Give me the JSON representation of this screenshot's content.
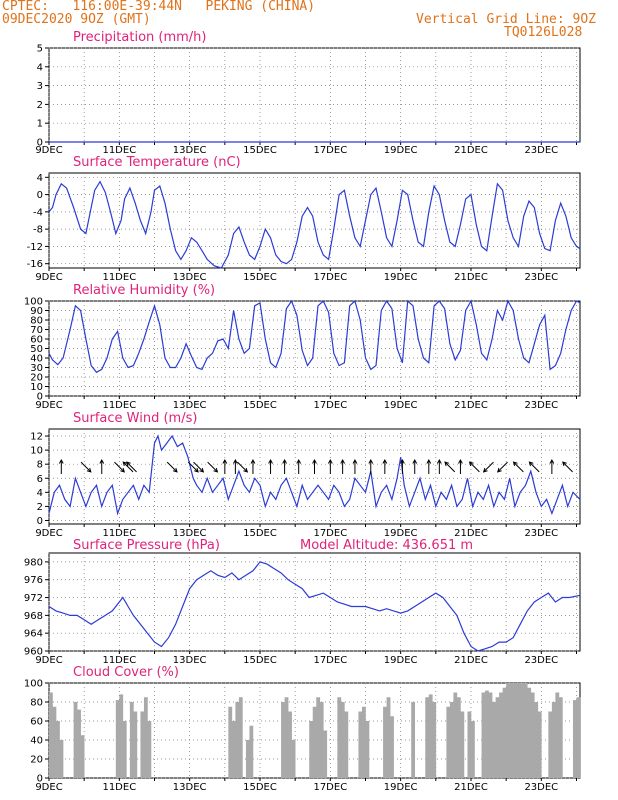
{
  "header": {
    "line1": "CPTEC:   116:00E-39:44N   PEKING (CHINA)",
    "line2": "09DEC2020 9OZ (GMT)",
    "right1": "Vertical Grid Line: 9OZ",
    "right2": "TQ0126L028"
  },
  "x_ticks": [
    "9DEC",
    "11DEC",
    "13DEC",
    "15DEC",
    "17DEC",
    "19DEC",
    "21DEC",
    "23DEC"
  ],
  "x_tick_days": [
    9,
    11,
    13,
    15,
    17,
    19,
    21,
    23
  ],
  "x_range_days": [
    9,
    24.1
  ],
  "colors": {
    "line": "#2b3bd6",
    "title": "#e0227a",
    "bar": "#a9a9a9",
    "header": "#e0731a",
    "grid": "#777777"
  },
  "chart_data": [
    {
      "type": "line",
      "title": "Precipitation (mm/h)",
      "ylim": [
        0,
        5
      ],
      "yticks": [
        0,
        1,
        2,
        3,
        4,
        5
      ],
      "x": [
        9,
        24.1
      ],
      "y": [
        0,
        0
      ]
    },
    {
      "type": "line",
      "title": "Surface Temperature (nC)",
      "ylim": [
        -17,
        5
      ],
      "yticks": [
        -16,
        -12,
        -8,
        -4,
        0,
        4
      ],
      "x": [
        9.0,
        9.1,
        9.2,
        9.35,
        9.5,
        9.7,
        9.9,
        10.05,
        10.15,
        10.3,
        10.45,
        10.6,
        10.75,
        10.9,
        11.05,
        11.15,
        11.3,
        11.45,
        11.6,
        11.75,
        11.9,
        12.0,
        12.15,
        12.3,
        12.45,
        12.6,
        12.75,
        12.9,
        13.05,
        13.2,
        13.35,
        13.5,
        13.7,
        13.9,
        14.1,
        14.25,
        14.4,
        14.55,
        14.7,
        14.85,
        15.0,
        15.15,
        15.3,
        15.45,
        15.6,
        15.75,
        15.9,
        16.05,
        16.2,
        16.35,
        16.5,
        16.65,
        16.8,
        16.95,
        17.1,
        17.25,
        17.4,
        17.55,
        17.7,
        17.85,
        18.0,
        18.15,
        18.3,
        18.45,
        18.6,
        18.75,
        18.9,
        19.05,
        19.2,
        19.35,
        19.5,
        19.65,
        19.8,
        19.95,
        20.1,
        20.25,
        20.4,
        20.55,
        20.7,
        20.85,
        21.0,
        21.15,
        21.3,
        21.45,
        21.6,
        21.75,
        21.9,
        22.05,
        22.2,
        22.35,
        22.5,
        22.65,
        22.8,
        22.95,
        23.1,
        23.25,
        23.4,
        23.55,
        23.7,
        23.85,
        24.0,
        24.1
      ],
      "y": [
        -4,
        -3,
        0,
        2.5,
        1.5,
        -3,
        -8,
        -9,
        -5,
        1,
        3,
        0.5,
        -4,
        -9,
        -6,
        -1,
        1.5,
        -2,
        -6,
        -9,
        -4,
        1,
        2,
        -2,
        -8,
        -13,
        -15,
        -13,
        -10,
        -11,
        -13,
        -15,
        -16.5,
        -17,
        -14,
        -9,
        -7.5,
        -11,
        -14,
        -15,
        -12,
        -8,
        -10,
        -14,
        -15.5,
        -16,
        -15,
        -11,
        -5,
        -3,
        -5,
        -11,
        -14,
        -15,
        -8,
        0,
        1,
        -5,
        -10,
        -12,
        -6,
        0,
        1.5,
        -4,
        -10,
        -12,
        -6,
        1,
        0,
        -6,
        -11,
        -12,
        -4,
        2,
        0,
        -6,
        -11,
        -12,
        -7,
        -1,
        0,
        -7,
        -12,
        -13,
        -5,
        2.5,
        1,
        -6,
        -10,
        -12,
        -5,
        -1.5,
        -3,
        -9,
        -12.5,
        -13,
        -6,
        -2,
        -5,
        -10,
        -12,
        -12.5
      ]
    },
    {
      "type": "line",
      "title": "Relative Humidity (%)",
      "ylim": [
        0,
        100
      ],
      "yticks": [
        0,
        10,
        20,
        30,
        40,
        50,
        60,
        70,
        80,
        90,
        100
      ],
      "x": [
        9.0,
        9.1,
        9.25,
        9.4,
        9.6,
        9.75,
        9.9,
        10.05,
        10.2,
        10.35,
        10.5,
        10.65,
        10.8,
        10.95,
        11.1,
        11.25,
        11.4,
        11.55,
        11.7,
        11.85,
        12.0,
        12.15,
        12.3,
        12.45,
        12.6,
        12.75,
        12.9,
        13.05,
        13.2,
        13.35,
        13.5,
        13.65,
        13.8,
        13.95,
        14.1,
        14.25,
        14.4,
        14.55,
        14.7,
        14.85,
        15.0,
        15.15,
        15.3,
        15.45,
        15.6,
        15.75,
        15.9,
        16.05,
        16.2,
        16.35,
        16.5,
        16.65,
        16.8,
        16.95,
        17.1,
        17.25,
        17.4,
        17.55,
        17.7,
        17.85,
        18.0,
        18.15,
        18.3,
        18.45,
        18.6,
        18.75,
        18.9,
        19.05,
        19.2,
        19.35,
        19.5,
        19.65,
        19.8,
        19.95,
        20.1,
        20.25,
        20.4,
        20.55,
        20.7,
        20.85,
        21.0,
        21.15,
        21.3,
        21.45,
        21.6,
        21.75,
        21.9,
        22.05,
        22.2,
        22.35,
        22.5,
        22.65,
        22.8,
        22.95,
        23.1,
        23.25,
        23.4,
        23.55,
        23.7,
        23.85,
        24.0,
        24.1
      ],
      "y": [
        45,
        38,
        33,
        40,
        70,
        95,
        90,
        60,
        32,
        25,
        28,
        40,
        60,
        68,
        40,
        30,
        32,
        45,
        60,
        78,
        95,
        75,
        40,
        30,
        30,
        40,
        55,
        42,
        30,
        28,
        40,
        45,
        58,
        60,
        50,
        90,
        60,
        45,
        50,
        95,
        98,
        60,
        35,
        30,
        45,
        92,
        100,
        85,
        48,
        32,
        40,
        95,
        100,
        88,
        45,
        32,
        35,
        95,
        100,
        80,
        40,
        28,
        32,
        90,
        100,
        92,
        50,
        35,
        100,
        95,
        60,
        40,
        35,
        95,
        100,
        92,
        55,
        38,
        48,
        90,
        100,
        75,
        45,
        38,
        60,
        90,
        80,
        100,
        90,
        60,
        40,
        35,
        55,
        75,
        85,
        28,
        32,
        45,
        70,
        90,
        100,
        98
      ]
    },
    {
      "type": "line",
      "title": "Surface Wind (m/s)",
      "ylim": [
        -0.5,
        13
      ],
      "yticks": [
        0,
        2,
        4,
        6,
        8,
        10,
        12
      ],
      "x": [
        9.0,
        9.15,
        9.3,
        9.45,
        9.6,
        9.75,
        9.9,
        10.05,
        10.2,
        10.35,
        10.5,
        10.65,
        10.8,
        10.95,
        11.1,
        11.25,
        11.4,
        11.55,
        11.7,
        11.85,
        12.0,
        12.1,
        12.2,
        12.35,
        12.5,
        12.65,
        12.8,
        12.95,
        13.1,
        13.2,
        13.35,
        13.5,
        13.65,
        13.8,
        13.95,
        14.1,
        14.25,
        14.4,
        14.55,
        14.7,
        14.85,
        15.0,
        15.15,
        15.3,
        15.45,
        15.6,
        15.75,
        15.9,
        16.05,
        16.2,
        16.35,
        16.5,
        16.65,
        16.8,
        16.95,
        17.1,
        17.25,
        17.4,
        17.55,
        17.7,
        17.85,
        18.0,
        18.15,
        18.3,
        18.45,
        18.6,
        18.75,
        18.9,
        19.0,
        19.1,
        19.25,
        19.4,
        19.55,
        19.7,
        19.85,
        20.0,
        20.15,
        20.3,
        20.45,
        20.6,
        20.75,
        20.9,
        21.05,
        21.2,
        21.35,
        21.5,
        21.65,
        21.8,
        21.95,
        22.1,
        22.25,
        22.4,
        22.55,
        22.7,
        22.85,
        23.0,
        23.15,
        23.3,
        23.45,
        23.6,
        23.75,
        23.9,
        24.1
      ],
      "y": [
        1,
        4,
        5,
        3,
        2,
        6,
        4,
        2,
        4,
        5,
        2,
        4,
        5,
        1,
        3,
        4,
        5,
        3,
        5,
        4,
        11,
        12,
        10,
        11,
        12,
        10.5,
        11,
        9,
        6,
        5,
        4,
        6,
        4,
        5,
        6,
        3,
        5,
        7,
        5,
        4,
        6,
        5,
        2,
        4,
        3,
        5,
        6,
        4,
        2,
        5,
        3,
        4,
        5,
        4,
        3,
        5,
        4,
        2,
        3,
        6,
        5,
        4,
        7,
        2,
        4,
        5,
        3,
        6,
        9,
        5,
        2,
        4,
        6,
        3,
        5,
        2,
        4,
        3,
        5,
        2,
        3,
        6,
        2,
        4,
        3,
        5,
        2,
        4,
        3,
        6,
        2,
        4,
        5,
        7,
        4,
        2,
        3,
        1,
        3,
        5,
        2,
        4,
        3
      ]
    },
    {
      "type": "line",
      "title": "Surface Pressure (hPa)",
      "subtitle": "Model Altitude: 436.651 m",
      "ylim": [
        960,
        982
      ],
      "yticks": [
        960,
        964,
        968,
        972,
        976,
        980
      ],
      "x": [
        9.0,
        9.2,
        9.4,
        9.6,
        9.8,
        10.0,
        10.2,
        10.4,
        10.6,
        10.8,
        11.0,
        11.1,
        11.25,
        11.4,
        11.6,
        11.8,
        12.0,
        12.2,
        12.4,
        12.6,
        12.8,
        13.0,
        13.2,
        13.4,
        13.6,
        13.8,
        14.0,
        14.2,
        14.4,
        14.6,
        14.8,
        15.0,
        15.2,
        15.4,
        15.6,
        15.8,
        16.0,
        16.2,
        16.4,
        16.6,
        16.8,
        17.0,
        17.2,
        17.4,
        17.6,
        17.8,
        18.0,
        18.2,
        18.4,
        18.6,
        18.8,
        19.0,
        19.2,
        19.4,
        19.6,
        19.8,
        20.0,
        20.2,
        20.4,
        20.6,
        20.8,
        21.0,
        21.2,
        21.4,
        21.6,
        21.8,
        22.0,
        22.2,
        22.4,
        22.6,
        22.8,
        23.0,
        23.2,
        23.4,
        23.6,
        23.8,
        24.1
      ],
      "y": [
        970,
        969,
        968.5,
        968,
        968,
        967,
        966,
        967,
        968,
        969,
        971,
        972,
        970,
        968,
        966,
        964,
        962,
        961,
        963,
        966,
        970,
        974,
        976,
        977,
        978,
        977,
        976.5,
        977.5,
        976,
        977,
        978,
        980,
        979.5,
        978.5,
        977.5,
        976,
        975,
        974,
        972,
        972.5,
        973,
        972,
        971,
        970.5,
        970,
        970,
        970,
        969.5,
        969,
        969.5,
        969,
        968.5,
        969,
        970,
        971,
        972,
        973,
        972,
        970,
        968,
        964,
        961,
        960,
        960.5,
        961,
        962,
        962,
        963,
        966,
        969,
        971,
        972,
        973,
        971,
        972,
        972,
        972.5
      ]
    },
    {
      "type": "bar",
      "title": "Cloud Cover (%)",
      "ylim": [
        0,
        100
      ],
      "yticks": [
        0,
        20,
        40,
        60,
        80,
        100
      ],
      "x": [
        9.0,
        9.1,
        9.2,
        9.3,
        9.4,
        9.5,
        9.6,
        9.7,
        9.8,
        9.9,
        10.0,
        10.1,
        10.2,
        10.3,
        10.4,
        10.5,
        10.6,
        10.7,
        10.8,
        10.9,
        11.0,
        11.1,
        11.2,
        11.3,
        11.4,
        11.5,
        11.6,
        11.7,
        11.8,
        11.9,
        12.0,
        12.1,
        12.2,
        12.3,
        12.4,
        12.5,
        12.6,
        12.7,
        12.8,
        12.9,
        13.0,
        13.1,
        13.2,
        13.3,
        13.4,
        13.5,
        13.6,
        13.7,
        13.8,
        13.9,
        14.0,
        14.1,
        14.2,
        14.3,
        14.4,
        14.5,
        14.6,
        14.7,
        14.8,
        14.9,
        15.0,
        15.1,
        15.2,
        15.3,
        15.4,
        15.5,
        15.6,
        15.7,
        15.8,
        15.9,
        16.0,
        16.1,
        16.2,
        16.3,
        16.4,
        16.5,
        16.6,
        16.7,
        16.8,
        16.9,
        17.0,
        17.1,
        17.2,
        17.3,
        17.4,
        17.5,
        17.6,
        17.7,
        17.8,
        17.9,
        18.0,
        18.1,
        18.2,
        18.3,
        18.4,
        18.5,
        18.6,
        18.7,
        18.8,
        18.9,
        19.0,
        19.1,
        19.2,
        19.3,
        19.4,
        19.5,
        19.6,
        19.7,
        19.8,
        19.9,
        20.0,
        20.1,
        20.2,
        20.3,
        20.4,
        20.5,
        20.6,
        20.7,
        20.8,
        20.9,
        21.0,
        21.1,
        21.2,
        21.3,
        21.4,
        21.5,
        21.6,
        21.7,
        21.8,
        21.9,
        22.0,
        22.1,
        22.2,
        22.3,
        22.4,
        22.5,
        22.6,
        22.7,
        22.8,
        22.9,
        23.0,
        23.1,
        23.2,
        23.3,
        23.4,
        23.5,
        23.6,
        23.7,
        23.8,
        23.9,
        24.0
      ],
      "values": [
        90,
        75,
        60,
        40,
        0,
        0,
        0,
        80,
        72,
        45,
        0,
        0,
        0,
        0,
        0,
        0,
        0,
        0,
        0,
        82,
        88,
        60,
        0,
        80,
        70,
        0,
        70,
        85,
        60,
        0,
        0,
        0,
        0,
        0,
        0,
        0,
        0,
        0,
        0,
        0,
        0,
        0,
        0,
        0,
        0,
        0,
        0,
        0,
        0,
        0,
        0,
        75,
        60,
        80,
        85,
        0,
        40,
        55,
        0,
        0,
        0,
        0,
        0,
        0,
        0,
        0,
        80,
        85,
        70,
        40,
        0,
        0,
        0,
        0,
        60,
        75,
        85,
        80,
        50,
        0,
        0,
        0,
        85,
        80,
        70,
        0,
        0,
        0,
        70,
        75,
        60,
        0,
        0,
        0,
        0,
        75,
        85,
        65,
        0,
        0,
        0,
        0,
        0,
        80,
        0,
        0,
        0,
        85,
        88,
        80,
        0,
        0,
        0,
        75,
        80,
        90,
        85,
        70,
        0,
        70,
        60,
        0,
        0,
        90,
        92,
        90,
        80,
        85,
        90,
        95,
        100,
        100,
        100,
        100,
        100,
        100,
        95,
        90,
        80,
        70,
        0,
        0,
        70,
        80,
        90,
        85,
        0,
        0,
        0,
        82,
        85
      ]
    }
  ],
  "wind_arrows": [
    {
      "day": 9.35,
      "direction": "N"
    },
    {
      "day": 10.05,
      "direction": "SE"
    },
    {
      "day": 10.5,
      "direction": "N"
    },
    {
      "day": 11.0,
      "direction": "SE"
    },
    {
      "day": 11.25,
      "direction": "NW"
    },
    {
      "day": 11.35,
      "direction": "NW"
    },
    {
      "day": 12.5,
      "direction": "SE"
    },
    {
      "day": 13.1,
      "direction": "SE"
    },
    {
      "day": 13.25,
      "direction": "SE"
    },
    {
      "day": 13.65,
      "direction": "SE"
    },
    {
      "day": 14.0,
      "direction": "N"
    },
    {
      "day": 14.3,
      "direction": "N"
    },
    {
      "day": 14.5,
      "direction": "SE"
    },
    {
      "day": 14.8,
      "direction": "N"
    },
    {
      "day": 15.3,
      "direction": "N"
    },
    {
      "day": 15.7,
      "direction": "N"
    },
    {
      "day": 16.1,
      "direction": "N"
    },
    {
      "day": 16.55,
      "direction": "N"
    },
    {
      "day": 17.0,
      "direction": "N"
    },
    {
      "day": 17.35,
      "direction": "N"
    },
    {
      "day": 17.7,
      "direction": "N"
    },
    {
      "day": 18.15,
      "direction": "N"
    },
    {
      "day": 18.55,
      "direction": "N"
    },
    {
      "day": 19.05,
      "direction": "N"
    },
    {
      "day": 19.4,
      "direction": "N"
    },
    {
      "day": 19.8,
      "direction": "N"
    },
    {
      "day": 20.1,
      "direction": "N"
    },
    {
      "day": 20.4,
      "direction": "NW"
    },
    {
      "day": 20.7,
      "direction": "N"
    },
    {
      "day": 21.1,
      "direction": "NW"
    },
    {
      "day": 21.5,
      "direction": "SW"
    },
    {
      "day": 21.9,
      "direction": "SW"
    },
    {
      "day": 22.35,
      "direction": "NW"
    },
    {
      "day": 22.8,
      "direction": "NW"
    },
    {
      "day": 23.3,
      "direction": "N"
    },
    {
      "day": 23.75,
      "direction": "NW"
    }
  ]
}
